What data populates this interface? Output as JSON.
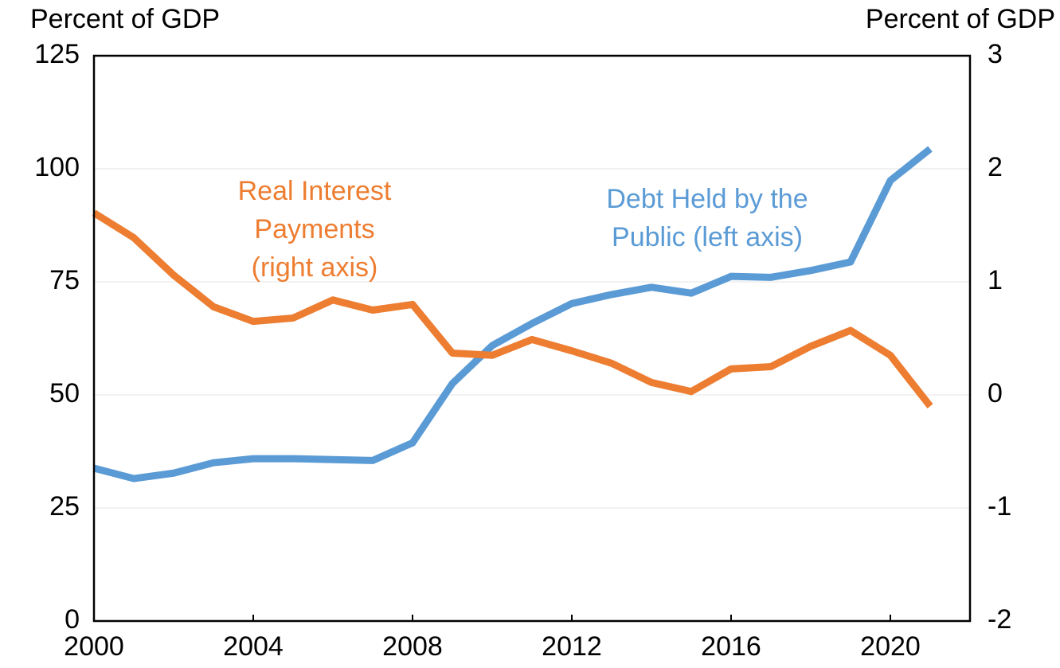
{
  "chart_data": {
    "type": "line",
    "y_label": "Percent of GDP",
    "y2_label": "Percent of GDP",
    "x": [
      2000,
      2001,
      2002,
      2003,
      2004,
      2005,
      2006,
      2007,
      2008,
      2009,
      2010,
      2011,
      2012,
      2013,
      2014,
      2015,
      2016,
      2017,
      2018,
      2019,
      2020,
      2021
    ],
    "xlim": [
      2000,
      2022
    ],
    "xticks": [
      2000,
      2004,
      2008,
      2012,
      2016,
      2020
    ],
    "ylim": [
      0,
      125
    ],
    "yticks": [
      0,
      25,
      50,
      75,
      100,
      125
    ],
    "y2lim": [
      -2,
      3
    ],
    "y2ticks": [
      -2,
      -1,
      0,
      1,
      2,
      3
    ],
    "grid": true,
    "series": [
      {
        "name": [
          "Debt Held by the",
          "Public (left axis)"
        ],
        "color": "#5B9BD5",
        "axis": "y",
        "values": [
          33.8,
          31.5,
          32.7,
          35.0,
          35.9,
          35.9,
          35.7,
          35.5,
          39.4,
          52.5,
          60.9,
          65.8,
          70.2,
          72.2,
          73.8,
          72.5,
          76.2,
          76.0,
          77.5,
          79.4,
          97.4,
          104.4
        ]
      },
      {
        "name": [
          "Real Interest",
          "Payments",
          "(right axis)"
        ],
        "color": "#ED7D31",
        "axis": "y2",
        "values": [
          1.61,
          1.39,
          1.06,
          0.78,
          0.65,
          0.68,
          0.84,
          0.75,
          0.8,
          0.37,
          0.35,
          0.49,
          0.39,
          0.28,
          0.11,
          0.03,
          0.23,
          0.25,
          0.43,
          0.57,
          0.35,
          -0.1
        ]
      }
    ]
  }
}
